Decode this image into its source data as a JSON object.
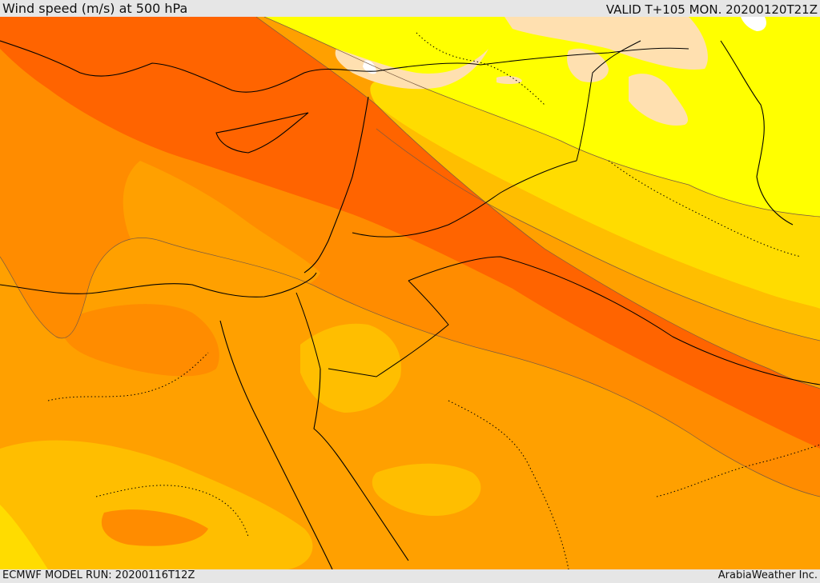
{
  "header": {
    "title": "Wind speed (m/s) at 500 hPa",
    "valid": "VALID T+105 MON. 20200120T21Z"
  },
  "footer": {
    "model_run": "ECMWF MODEL RUN: 20200116T12Z",
    "credit": "ArabiaWeather Inc."
  },
  "map": {
    "field": "wind speed",
    "level_hpa": 500,
    "colors": {
      "highest": "#ff6400",
      "high": "#ff8c00",
      "mid": "#ffa000",
      "mid_low": "#ffbe00",
      "low": "#ffdc00",
      "lowest": "#ffff00",
      "calm": "#ffe0b0",
      "none": "#ffffff"
    }
  }
}
